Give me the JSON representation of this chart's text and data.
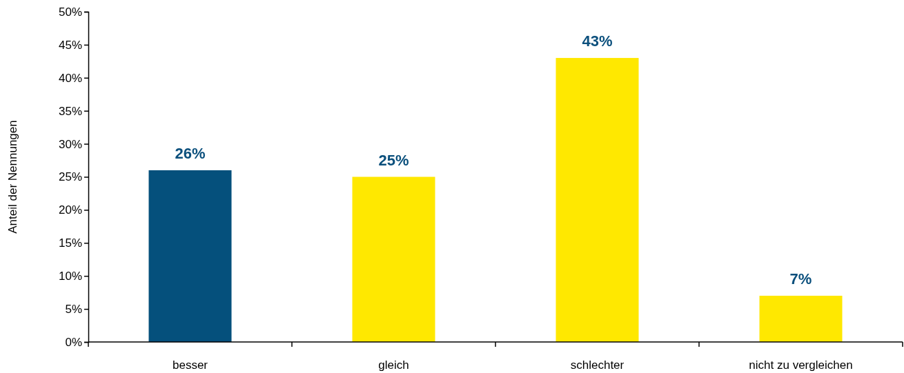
{
  "chart_data": {
    "type": "bar",
    "ylabel": "Anteil der Nennungen",
    "categories": [
      "besser",
      "gleich",
      "schlechter",
      "nicht zu vergleichen"
    ],
    "values": [
      26,
      25,
      43,
      7
    ],
    "colors": [
      "#05507c",
      "#ffe800",
      "#ffe800",
      "#ffe800"
    ],
    "value_labels": [
      "26%",
      "25%",
      "43%",
      "7%"
    ],
    "ylim": [
      0,
      50
    ],
    "yticks": [
      {
        "value": 0,
        "label": "0%"
      },
      {
        "value": 5,
        "label": "5%"
      },
      {
        "value": 10,
        "label": "10%"
      },
      {
        "value": 15,
        "label": "15%"
      },
      {
        "value": 20,
        "label": "20%"
      },
      {
        "value": 25,
        "label": "25%"
      },
      {
        "value": 30,
        "label": "30%"
      },
      {
        "value": 35,
        "label": "35%"
      },
      {
        "value": 40,
        "label": "40%"
      },
      {
        "value": 45,
        "label": "45%"
      },
      {
        "value": 50,
        "label": "50%"
      }
    ],
    "grid": false
  }
}
